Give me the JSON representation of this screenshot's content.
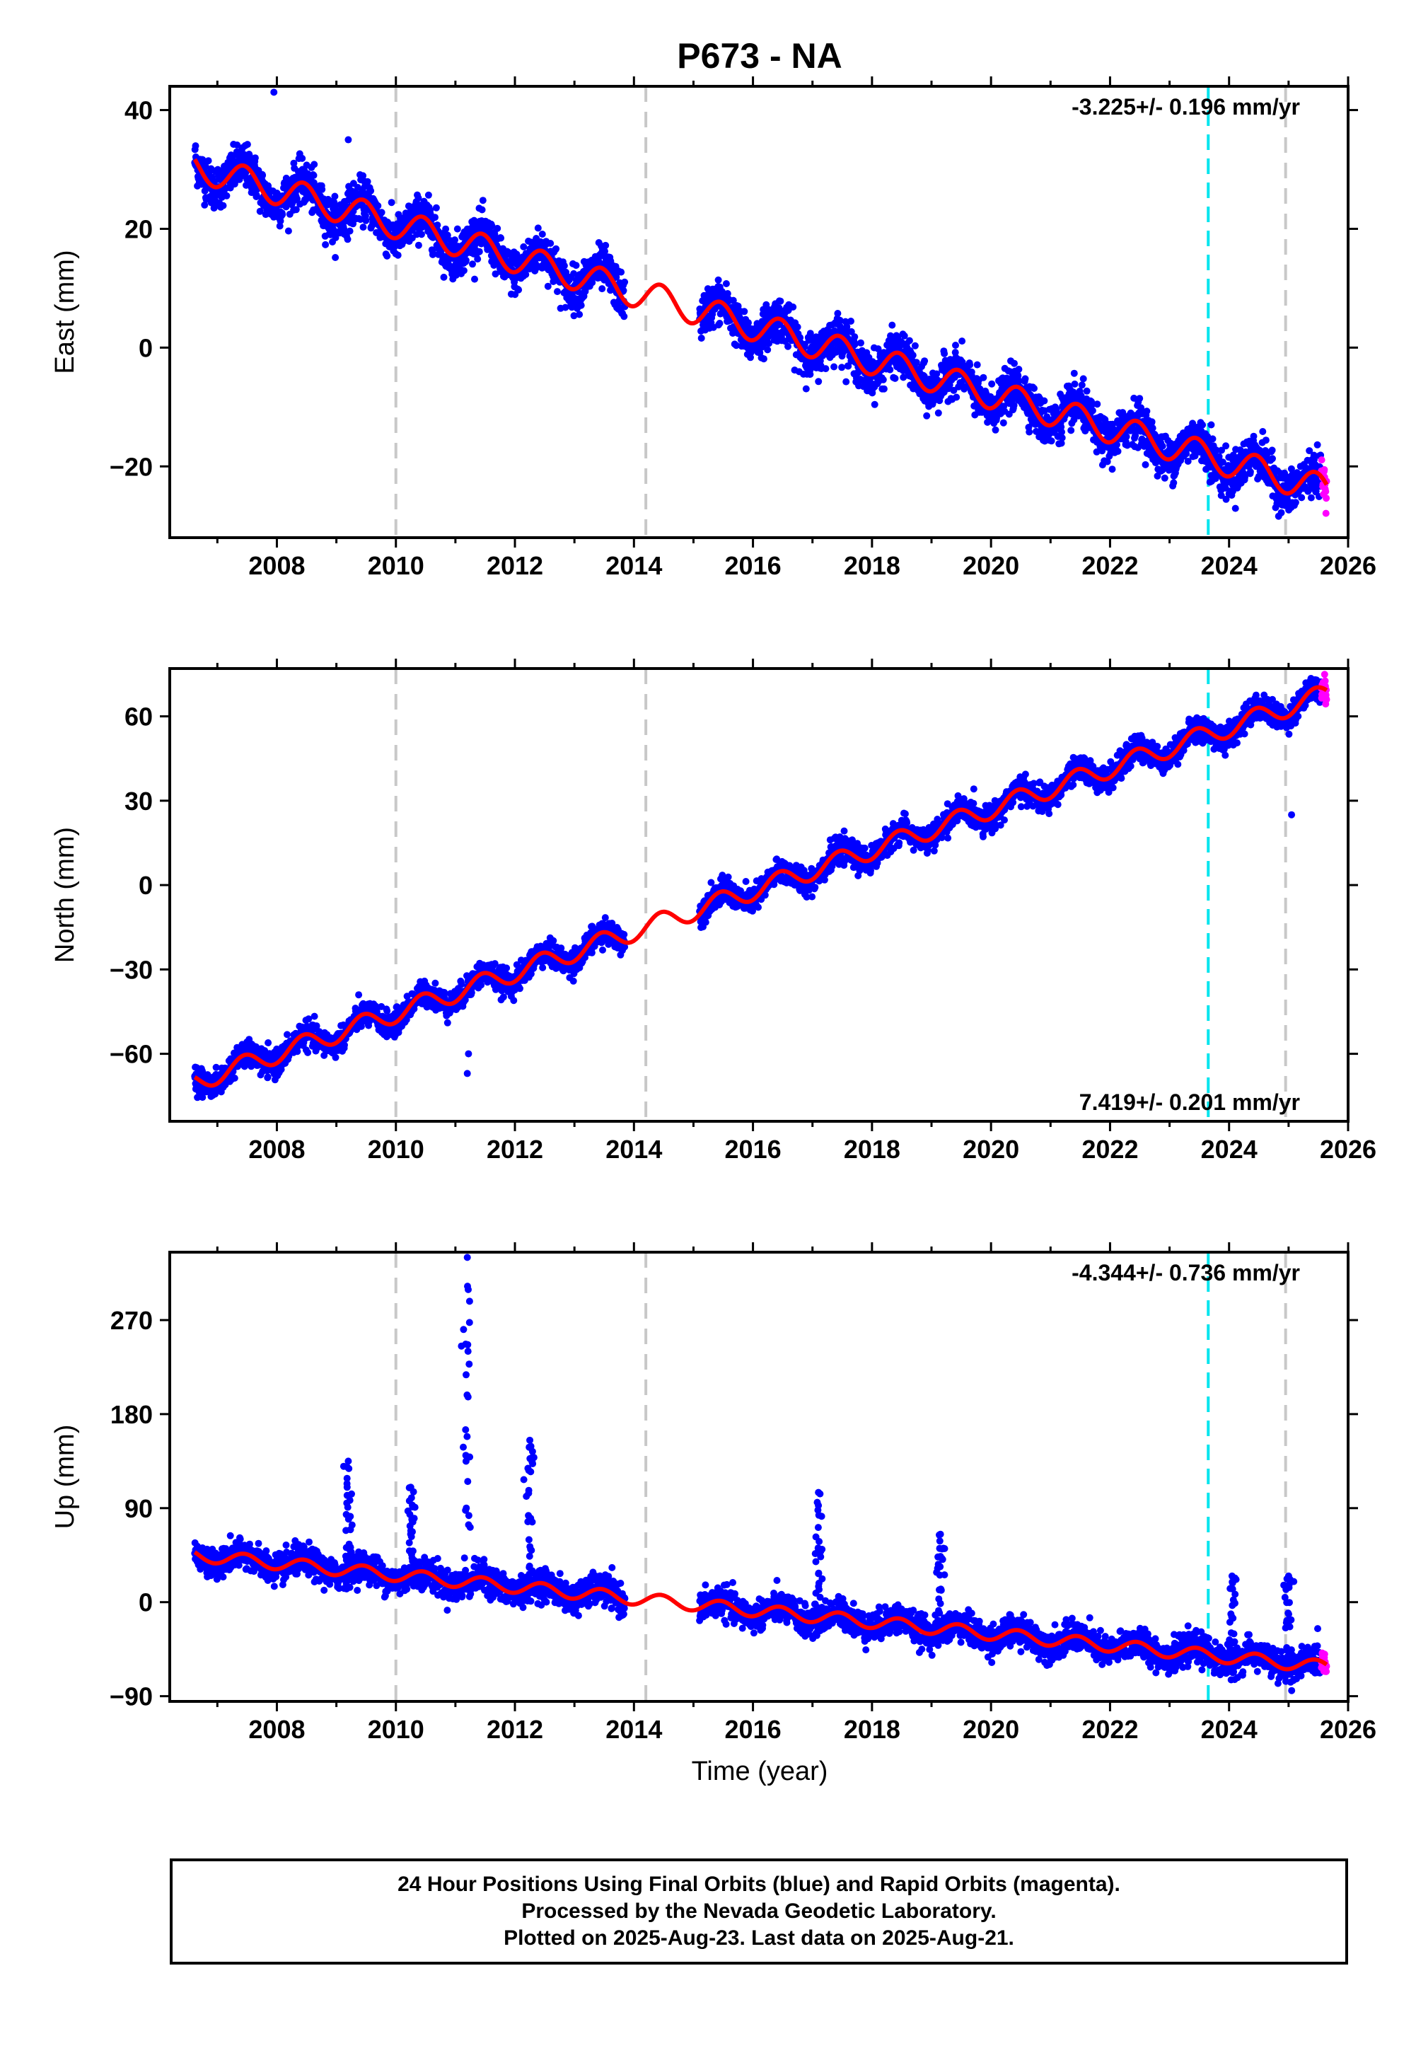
{
  "colors": {
    "final_orbits": "#0000ff",
    "rapid_orbits": "#ff00ff",
    "model": "#ff0000",
    "steps": "#c8c8c8",
    "event": "#00e5ee"
  },
  "chart_data": {
    "title": "P673 - NA",
    "type": "scatter",
    "xlabel": "Time (year)",
    "xlim": [
      2006.2,
      2026
    ],
    "xticks": [
      "2008",
      "2010",
      "2012",
      "2014",
      "2016",
      "2018",
      "2020",
      "2022",
      "2024",
      "2026"
    ],
    "step_lines_x": [
      2010.0,
      2014.2,
      2024.95
    ],
    "event_line_x": 2023.65,
    "data_gap": [
      2013.85,
      2015.1
    ],
    "rapid_start_x": 2025.55,
    "last_data_x": 2025.64,
    "panels": [
      {
        "name": "east",
        "ylabel": "East (mm)",
        "ylim": [
          -32,
          44
        ],
        "yticks": [
          "40",
          "20",
          "0",
          "−20"
        ],
        "ytick_values": [
          40,
          20,
          0,
          -20
        ],
        "rate": "-3.225+/- 0.196 mm/yr",
        "rate_position": "top-right",
        "trend": {
          "x": [
            2006.62,
            2025.64
          ],
          "y": [
            30.5,
            -24.0
          ]
        },
        "seasonal_amplitude_mm": 2.5,
        "scatter_std_mm": 1.8,
        "outliers": [
          {
            "x": 2007.95,
            "y": 43
          },
          {
            "x": 2009.2,
            "y": 35
          },
          {
            "x": 2023.7,
            "y": -13
          }
        ]
      },
      {
        "name": "north",
        "ylabel": "North (mm)",
        "ylim": [
          -84,
          77
        ],
        "yticks": [
          "60",
          "30",
          "0",
          "−30",
          "−60"
        ],
        "ytick_values": [
          60,
          30,
          0,
          -30,
          -60
        ],
        "rate": "7.419+/- 0.201 mm/yr",
        "rate_position": "bottom-right",
        "trend": {
          "x": [
            2006.62,
            2025.64
          ],
          "y": [
            -70.0,
            68.0
          ]
        },
        "seasonal_amplitude_mm": 3.5,
        "scatter_std_mm": 2.2,
        "outliers": [
          {
            "x": 2011.2,
            "y": -67
          },
          {
            "x": 2011.22,
            "y": -60
          },
          {
            "x": 2025.05,
            "y": 25
          }
        ]
      },
      {
        "name": "up",
        "ylabel": "Up (mm)",
        "ylim": [
          -95,
          335
        ],
        "yticks": [
          "270",
          "180",
          "90",
          "0",
          "−90"
        ],
        "ytick_values": [
          270,
          180,
          90,
          0,
          -90
        ],
        "rate": "-4.344+/- 0.736 mm/yr",
        "rate_position": "top-right",
        "trend": {
          "x": [
            2006.62,
            2025.64
          ],
          "y": [
            45.0,
            -62.0
          ]
        },
        "seasonal_amplitude_mm": 6,
        "scatter_std_mm": 7,
        "spikes": [
          {
            "x": 2009.2,
            "top": 135
          },
          {
            "x": 2010.25,
            "top": 110
          },
          {
            "x": 2011.2,
            "top": 330
          },
          {
            "x": 2012.25,
            "top": 155
          },
          {
            "x": 2017.1,
            "top": 105
          },
          {
            "x": 2019.15,
            "top": 65
          },
          {
            "x": 2024.05,
            "top": 25
          },
          {
            "x": 2025.0,
            "top": 25
          }
        ]
      }
    ]
  },
  "footer": {
    "line1": "24 Hour Positions Using Final Orbits (blue) and Rapid Orbits (magenta).",
    "line2": "Processed by the Nevada Geodetic Laboratory.",
    "line3": "Plotted on 2025-Aug-23. Last data on 2025-Aug-21."
  }
}
